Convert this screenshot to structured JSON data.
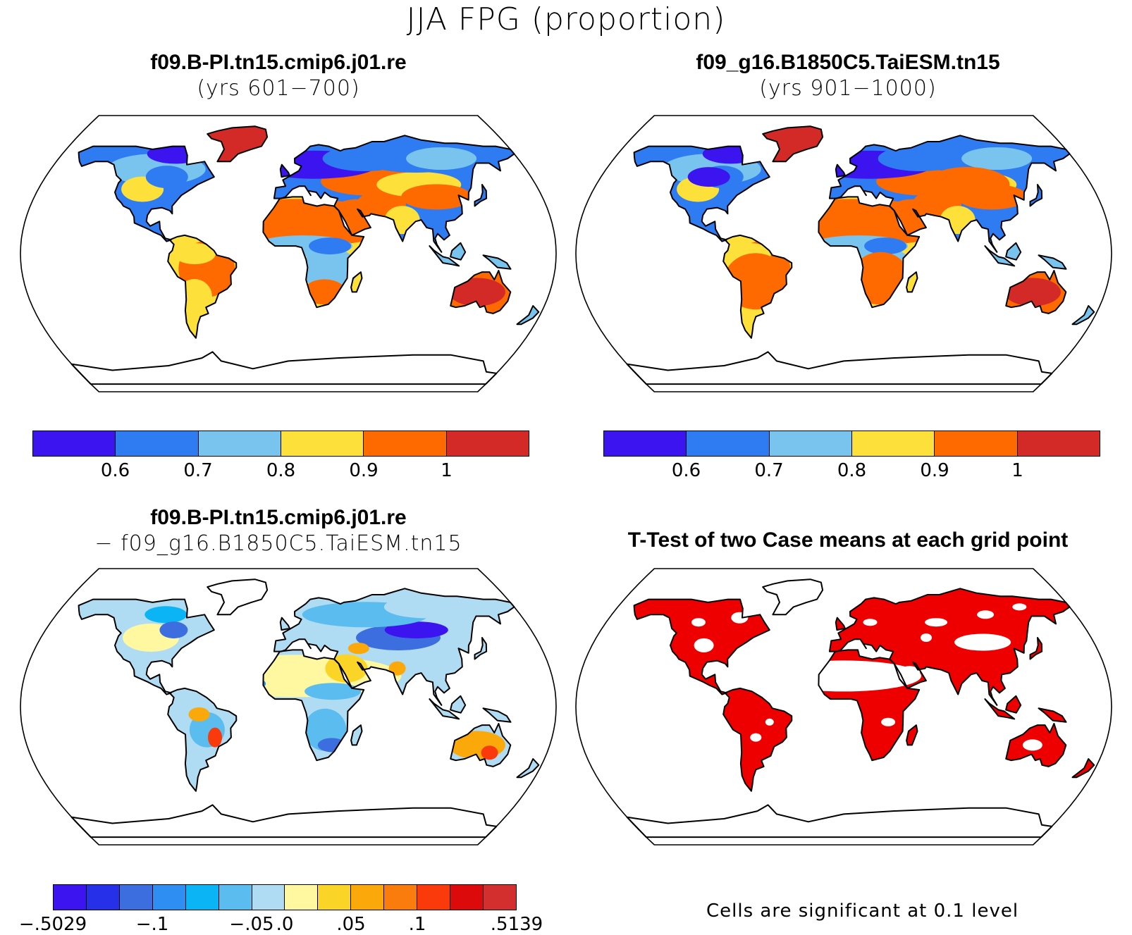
{
  "title": "JJA FPG (proportion)",
  "panels": {
    "top_left": {
      "line1": "f09.B-PI.tn15.cmip6.j01.re",
      "line2": "(yrs 601−700)"
    },
    "top_right": {
      "line1": "f09_g16.B1850C5.TaiESM.tn15",
      "line2": "(yrs 901−1000)"
    },
    "bottom_left": {
      "line1": "f09.B-PI.tn15.cmip6.j01.re",
      "line2": "− f09_g16.B1850C5.TaiESM.tn15"
    },
    "bottom_right": {
      "line1": "T-Test of two Case means at each grid point"
    }
  },
  "colorbar_abs": {
    "colors": [
      "#3b14f0",
      "#2f7cf2",
      "#79c4ee",
      "#fde13a",
      "#fe6a00",
      "#d32a27"
    ],
    "labels": [
      "0.6",
      "0.7",
      "0.8",
      "0.9",
      "1"
    ]
  },
  "colorbar_diff": {
    "colors": [
      "#3b14f0",
      "#2530e8",
      "#3d6ee0",
      "#2f8ef2",
      "#0bb5f5",
      "#5bbcef",
      "#b0dcf3",
      "#fff8a0",
      "#fbd428",
      "#fba80a",
      "#fa7c0c",
      "#fa3a0a",
      "#dc0a0a",
      "#d42f2f"
    ],
    "labels": [
      "−.5029",
      "−.1",
      "−.05",
      ".0",
      ".05",
      ".1",
      ".5139"
    ]
  },
  "significance_note": "Cells are significant at 0.1 level",
  "colors": {
    "significant": "#ee0000",
    "coast": "#000000",
    "background": "#ffffff"
  }
}
